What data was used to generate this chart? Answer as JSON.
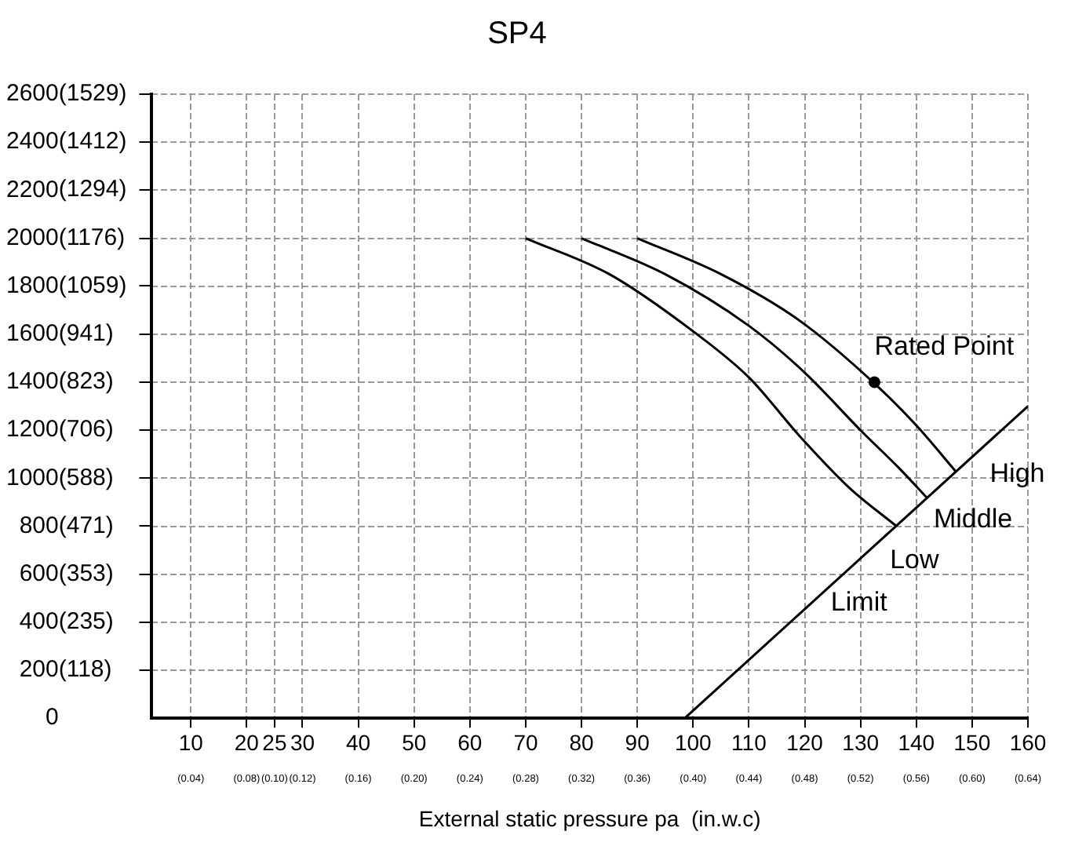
{
  "chart_data": {
    "type": "line",
    "title": "SP4",
    "xlabel": "External static pressure pa  (in.w.c)",
    "xlim": [
      3,
      160
    ],
    "xticks": [
      10,
      20,
      25,
      30,
      40,
      50,
      60,
      70,
      80,
      90,
      100,
      110,
      120,
      130,
      140,
      150,
      160
    ],
    "x2lim": [
      0.012,
      0.64
    ],
    "x2ticks": [
      {
        "value": 0.04,
        "label": "(0.04)"
      },
      {
        "value": 0.08,
        "label": "(0.08)"
      },
      {
        "value": 0.1,
        "label": "(0.10)"
      },
      {
        "value": 0.12,
        "label": "(0.12)"
      },
      {
        "value": 0.16,
        "label": "(0.16)"
      },
      {
        "value": 0.2,
        "label": "(0.20)"
      },
      {
        "value": 0.24,
        "label": "(0.24)"
      },
      {
        "value": 0.28,
        "label": "(0.28)"
      },
      {
        "value": 0.32,
        "label": "(0.32)"
      },
      {
        "value": 0.36,
        "label": "(0.36)"
      },
      {
        "value": 0.4,
        "label": "(0.40)"
      },
      {
        "value": 0.44,
        "label": "(0.44)"
      },
      {
        "value": 0.48,
        "label": "(0.48)"
      },
      {
        "value": 0.52,
        "label": "(0.52)"
      },
      {
        "value": 0.56,
        "label": "(0.56)"
      },
      {
        "value": 0.6,
        "label": "(0.60)"
      },
      {
        "value": 0.64,
        "label": "(0.64)"
      }
    ],
    "ylim": [
      0,
      2600
    ],
    "yticks": [
      0,
      200,
      400,
      600,
      800,
      1000,
      1200,
      1400,
      1600,
      1800,
      2000,
      2200,
      2400,
      2600
    ],
    "y2lim": [
      0,
      1529
    ],
    "y2ticks": [
      {
        "value": 118,
        "label": "(118)"
      },
      {
        "value": 235,
        "label": "(235)"
      },
      {
        "value": 353,
        "label": "(353)"
      },
      {
        "value": 471,
        "label": "(471)"
      },
      {
        "value": 588,
        "label": "(588)"
      },
      {
        "value": 706,
        "label": "(706)"
      },
      {
        "value": 823,
        "label": "(823)"
      },
      {
        "value": 941,
        "label": "(941)"
      },
      {
        "value": 1059,
        "label": "(1059)"
      },
      {
        "value": 1176,
        "label": "(1176)"
      },
      {
        "value": 1294,
        "label": "(1294)"
      },
      {
        "value": 1412,
        "label": "(1412)"
      },
      {
        "value": 1529,
        "label": "(1529)"
      }
    ],
    "grid": true,
    "series": [
      {
        "color": "#000000",
        "marker": "none",
        "x": [
          70,
          85,
          100,
          110,
          119,
          128,
          136.4
        ],
        "values": [
          2000,
          1850,
          1612,
          1420,
          1178,
          960,
          801
        ]
      },
      {
        "color": "#000000",
        "marker": "none",
        "x": [
          80,
          95,
          110,
          120,
          130,
          137,
          142
        ],
        "values": [
          2000,
          1850,
          1635,
          1440,
          1200,
          1040,
          916
        ]
      },
      {
        "color": "#000000",
        "marker": "none",
        "x": [
          90,
          105,
          119,
          132.5,
          140,
          147
        ],
        "values": [
          2000,
          1850,
          1658,
          1395,
          1220,
          1030
        ]
      },
      {
        "color": "#000000",
        "marker": "none",
        "x": [
          98.5,
          160
        ],
        "values": [
          0,
          1300
        ]
      },
      {
        "type": "scatter",
        "color": "#000000",
        "marker": "circle",
        "x": [
          132.5
        ],
        "values": [
          1400
        ]
      }
    ],
    "annotations": [
      {
        "text": "Rated Point",
        "x": 132.5,
        "y": 1400
      },
      {
        "text": "High",
        "x": 147,
        "y": 1030
      },
      {
        "text": "Middle",
        "x": 142,
        "y": 916
      },
      {
        "text": "Low",
        "x": 136.4,
        "y": 801
      },
      {
        "text": "Limit",
        "x": 123,
        "y": 518
      }
    ]
  }
}
